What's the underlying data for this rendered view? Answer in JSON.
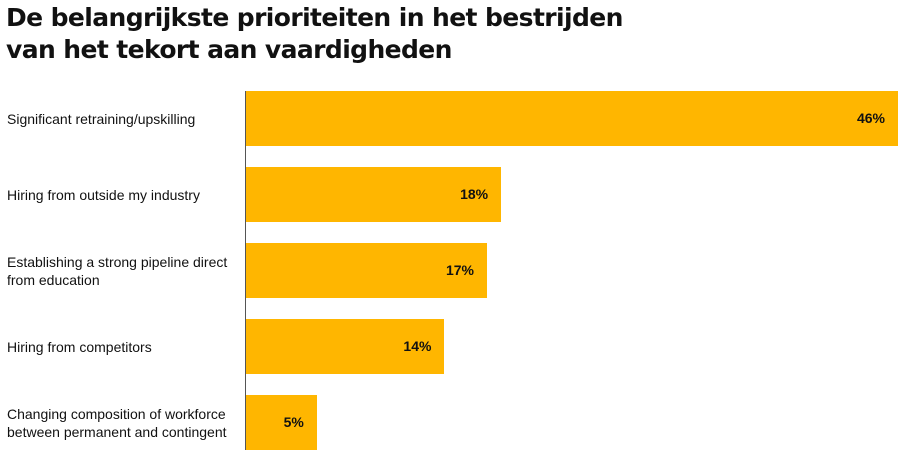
{
  "chart_data": {
    "type": "bar",
    "orientation": "horizontal",
    "title": "De belangrijkste prioriteiten in het bestrijden van het tekort aan vaardigheden",
    "title_lines": [
      "De belangrijkste prioriteiten in het bestrijden",
      "van het tekort aan vaardigheden"
    ],
    "categories": [
      "Significant retraining/upskilling",
      "Hiring from outside my industry",
      "Establishing a strong pipeline direct from education",
      "Hiring from competitors",
      "Changing composition of workforce between permanent and contingent"
    ],
    "values": [
      46,
      18,
      17,
      14,
      5
    ],
    "labels": [
      "46%",
      "18%",
      "17%",
      "14%",
      "5%"
    ],
    "xlim": [
      0,
      46
    ],
    "unit": "%",
    "bar_color": "#FFB600",
    "grid": false
  }
}
